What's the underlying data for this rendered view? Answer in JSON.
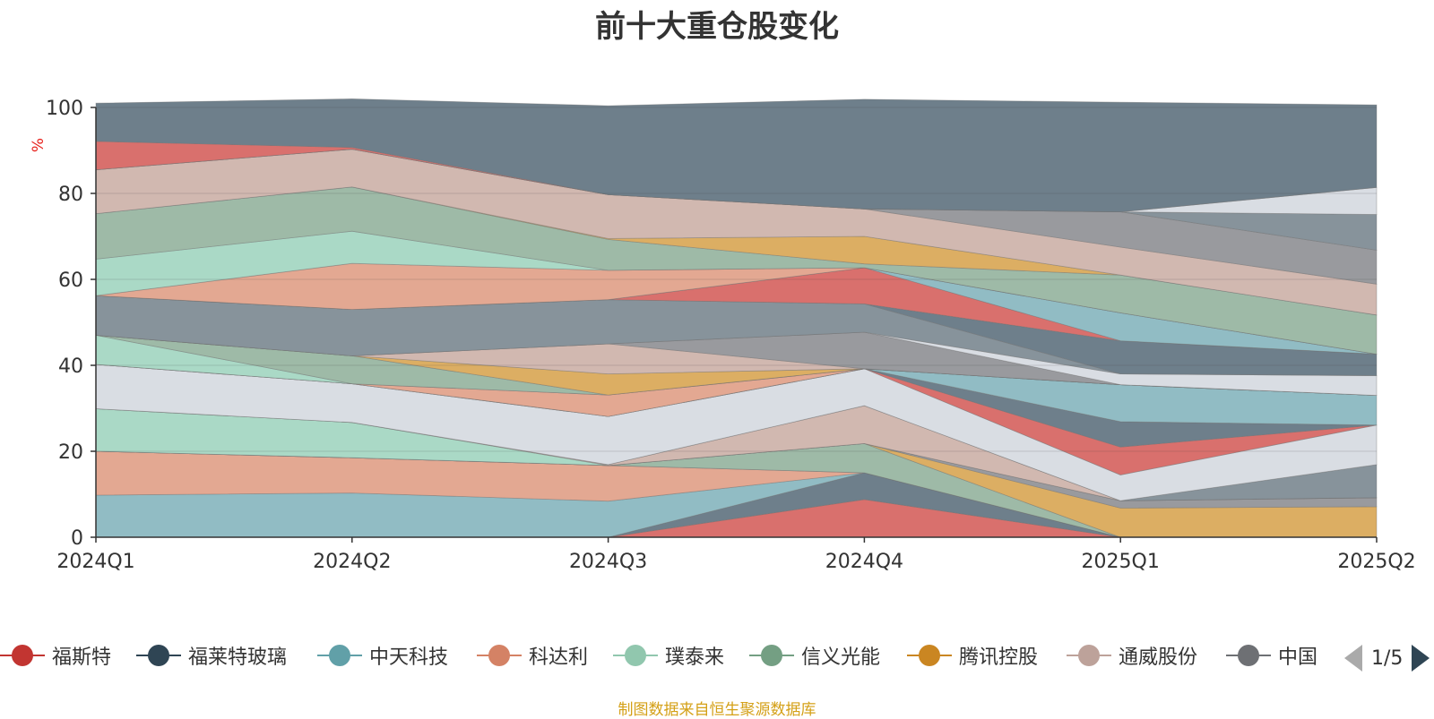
{
  "chart_data": {
    "type": "area",
    "stacked": true,
    "title": "前十大重仓股变化",
    "ylabel": "%",
    "ylim": [
      0,
      100
    ],
    "yticks": [
      0,
      20,
      40,
      60,
      80,
      100
    ],
    "categories": [
      "2024Q1",
      "2024Q2",
      "2024Q3",
      "2024Q4",
      "2025Q1",
      "2025Q2"
    ],
    "grid": true,
    "legend_position": "bottom",
    "series": [
      {
        "color": "#d9706d",
        "values": [
          0,
          0,
          0,
          8.8,
          0,
          0
        ]
      },
      {
        "color": "#6e7f8b",
        "values": [
          0,
          0,
          0,
          6.2,
          0,
          0
        ]
      },
      {
        "color": "#91bcc4",
        "values": [
          9.8,
          10.3,
          8.4,
          0,
          0,
          0
        ]
      },
      {
        "color": "#e3a892",
        "values": [
          10.2,
          8.2,
          8.3,
          0,
          0,
          0
        ]
      },
      {
        "color": "#d1b8b0",
        "values": [
          0,
          0,
          0,
          0,
          0,
          0
        ]
      },
      {
        "color": "#9ebaa7",
        "values": [
          0,
          0,
          0,
          6.8,
          0,
          0
        ]
      },
      {
        "color": "#dcae63",
        "values": [
          0,
          0,
          0,
          0,
          6.8,
          7.1
        ]
      },
      {
        "color": "#999a9e",
        "values": [
          0,
          0,
          0,
          0,
          1.7,
          2.1
        ]
      },
      {
        "color": "#aad9c6",
        "values": [
          9.9,
          8.2,
          0,
          0,
          0,
          0
        ]
      },
      {
        "color": "#d1b8b0",
        "values": [
          0,
          0,
          0.2,
          8.8,
          0,
          0
        ]
      },
      {
        "color": "#87939b",
        "values": [
          0,
          0,
          0,
          0,
          0,
          7.7
        ]
      },
      {
        "color": "#d9dde3",
        "values": [
          10.3,
          9.0,
          11.2,
          8.6,
          6.0,
          9.2
        ]
      },
      {
        "color": "#d9706d",
        "values": [
          0,
          0,
          0,
          0,
          6.5,
          0
        ]
      },
      {
        "color": "#6e7f8b",
        "values": [
          0,
          0,
          0,
          0,
          5.9,
          0
        ]
      },
      {
        "color": "#91bcc4",
        "values": [
          0,
          0,
          0,
          0,
          8.6,
          6.9
        ]
      },
      {
        "color": "#e3a892",
        "values": [
          0,
          0,
          5.0,
          0,
          0,
          0
        ]
      },
      {
        "color": "#aad9c6",
        "values": [
          6.8,
          0,
          0,
          0,
          0,
          0
        ]
      },
      {
        "color": "#9ebaa7",
        "values": [
          0,
          6.5,
          0,
          0,
          0,
          0
        ]
      },
      {
        "color": "#dcae63",
        "values": [
          0,
          0,
          4.9,
          0,
          0,
          0
        ]
      },
      {
        "color": "#d1b8b0",
        "values": [
          0,
          0,
          7.0,
          0,
          0,
          0
        ]
      },
      {
        "color": "#999a9e",
        "values": [
          0,
          0,
          0,
          8.5,
          0,
          0
        ]
      },
      {
        "color": "#d9dde3",
        "values": [
          0,
          0,
          0,
          0,
          2.5,
          4.6
        ]
      },
      {
        "color": "#87939b",
        "values": [
          9.2,
          10.8,
          10.3,
          6.6,
          0,
          0
        ]
      },
      {
        "color": "#6e7f8b",
        "values": [
          0,
          0,
          0,
          0,
          7.7,
          5.0
        ]
      },
      {
        "color": "#d9706d",
        "values": [
          0,
          0,
          0,
          8.4,
          0,
          0
        ]
      },
      {
        "color": "#91bcc4",
        "values": [
          0,
          0,
          0,
          0,
          6.5,
          0
        ]
      },
      {
        "color": "#e3a892",
        "values": [
          0,
          10.7,
          6.8,
          0,
          0,
          0
        ]
      },
      {
        "color": "#aad9c6",
        "values": [
          8.5,
          7.5,
          0,
          0,
          0,
          0
        ]
      },
      {
        "color": "#9ebaa7",
        "values": [
          10.6,
          10.3,
          7.2,
          0.9,
          8.8,
          9.1
        ]
      },
      {
        "color": "#dcae63",
        "values": [
          0,
          0,
          0.2,
          6.4,
          0,
          0
        ]
      },
      {
        "color": "#d1b8b0",
        "values": [
          10.2,
          8.8,
          10.2,
          6.4,
          6.5,
          7.2
        ]
      },
      {
        "color": "#999a9e",
        "values": [
          0,
          0,
          0,
          0,
          8.2,
          7.9
        ]
      },
      {
        "color": "#87939b",
        "values": [
          0,
          0,
          0,
          0,
          0,
          8.3
        ]
      },
      {
        "color": "#d9dde3",
        "values": [
          0,
          0,
          0,
          0,
          0,
          6.3
        ]
      },
      {
        "color": "#d9706d",
        "values": [
          6.6,
          0.4,
          0,
          0,
          0,
          0
        ]
      },
      {
        "color": "#6e7f8b",
        "values": [
          8.9,
          11.3,
          20.7,
          25.5,
          25.5,
          19.2
        ]
      }
    ]
  },
  "legend": {
    "items": [
      {
        "label": "福斯特",
        "color": "#c23531"
      },
      {
        "label": "福莱特玻璃",
        "color": "#2f4554"
      },
      {
        "label": "中天科技",
        "color": "#61a0a8"
      },
      {
        "label": "科达利",
        "color": "#d48265"
      },
      {
        "label": "璞泰来",
        "color": "#91c7ae"
      },
      {
        "label": "信义光能",
        "color": "#749f83"
      },
      {
        "label": "腾讯控股",
        "color": "#ca8622"
      },
      {
        "label": "通威股份",
        "color": "#bda29a"
      },
      {
        "label": "中国",
        "color": "#6e7074"
      }
    ],
    "page": "1/5"
  },
  "source_note": "制图数据来自恒生聚源数据库"
}
